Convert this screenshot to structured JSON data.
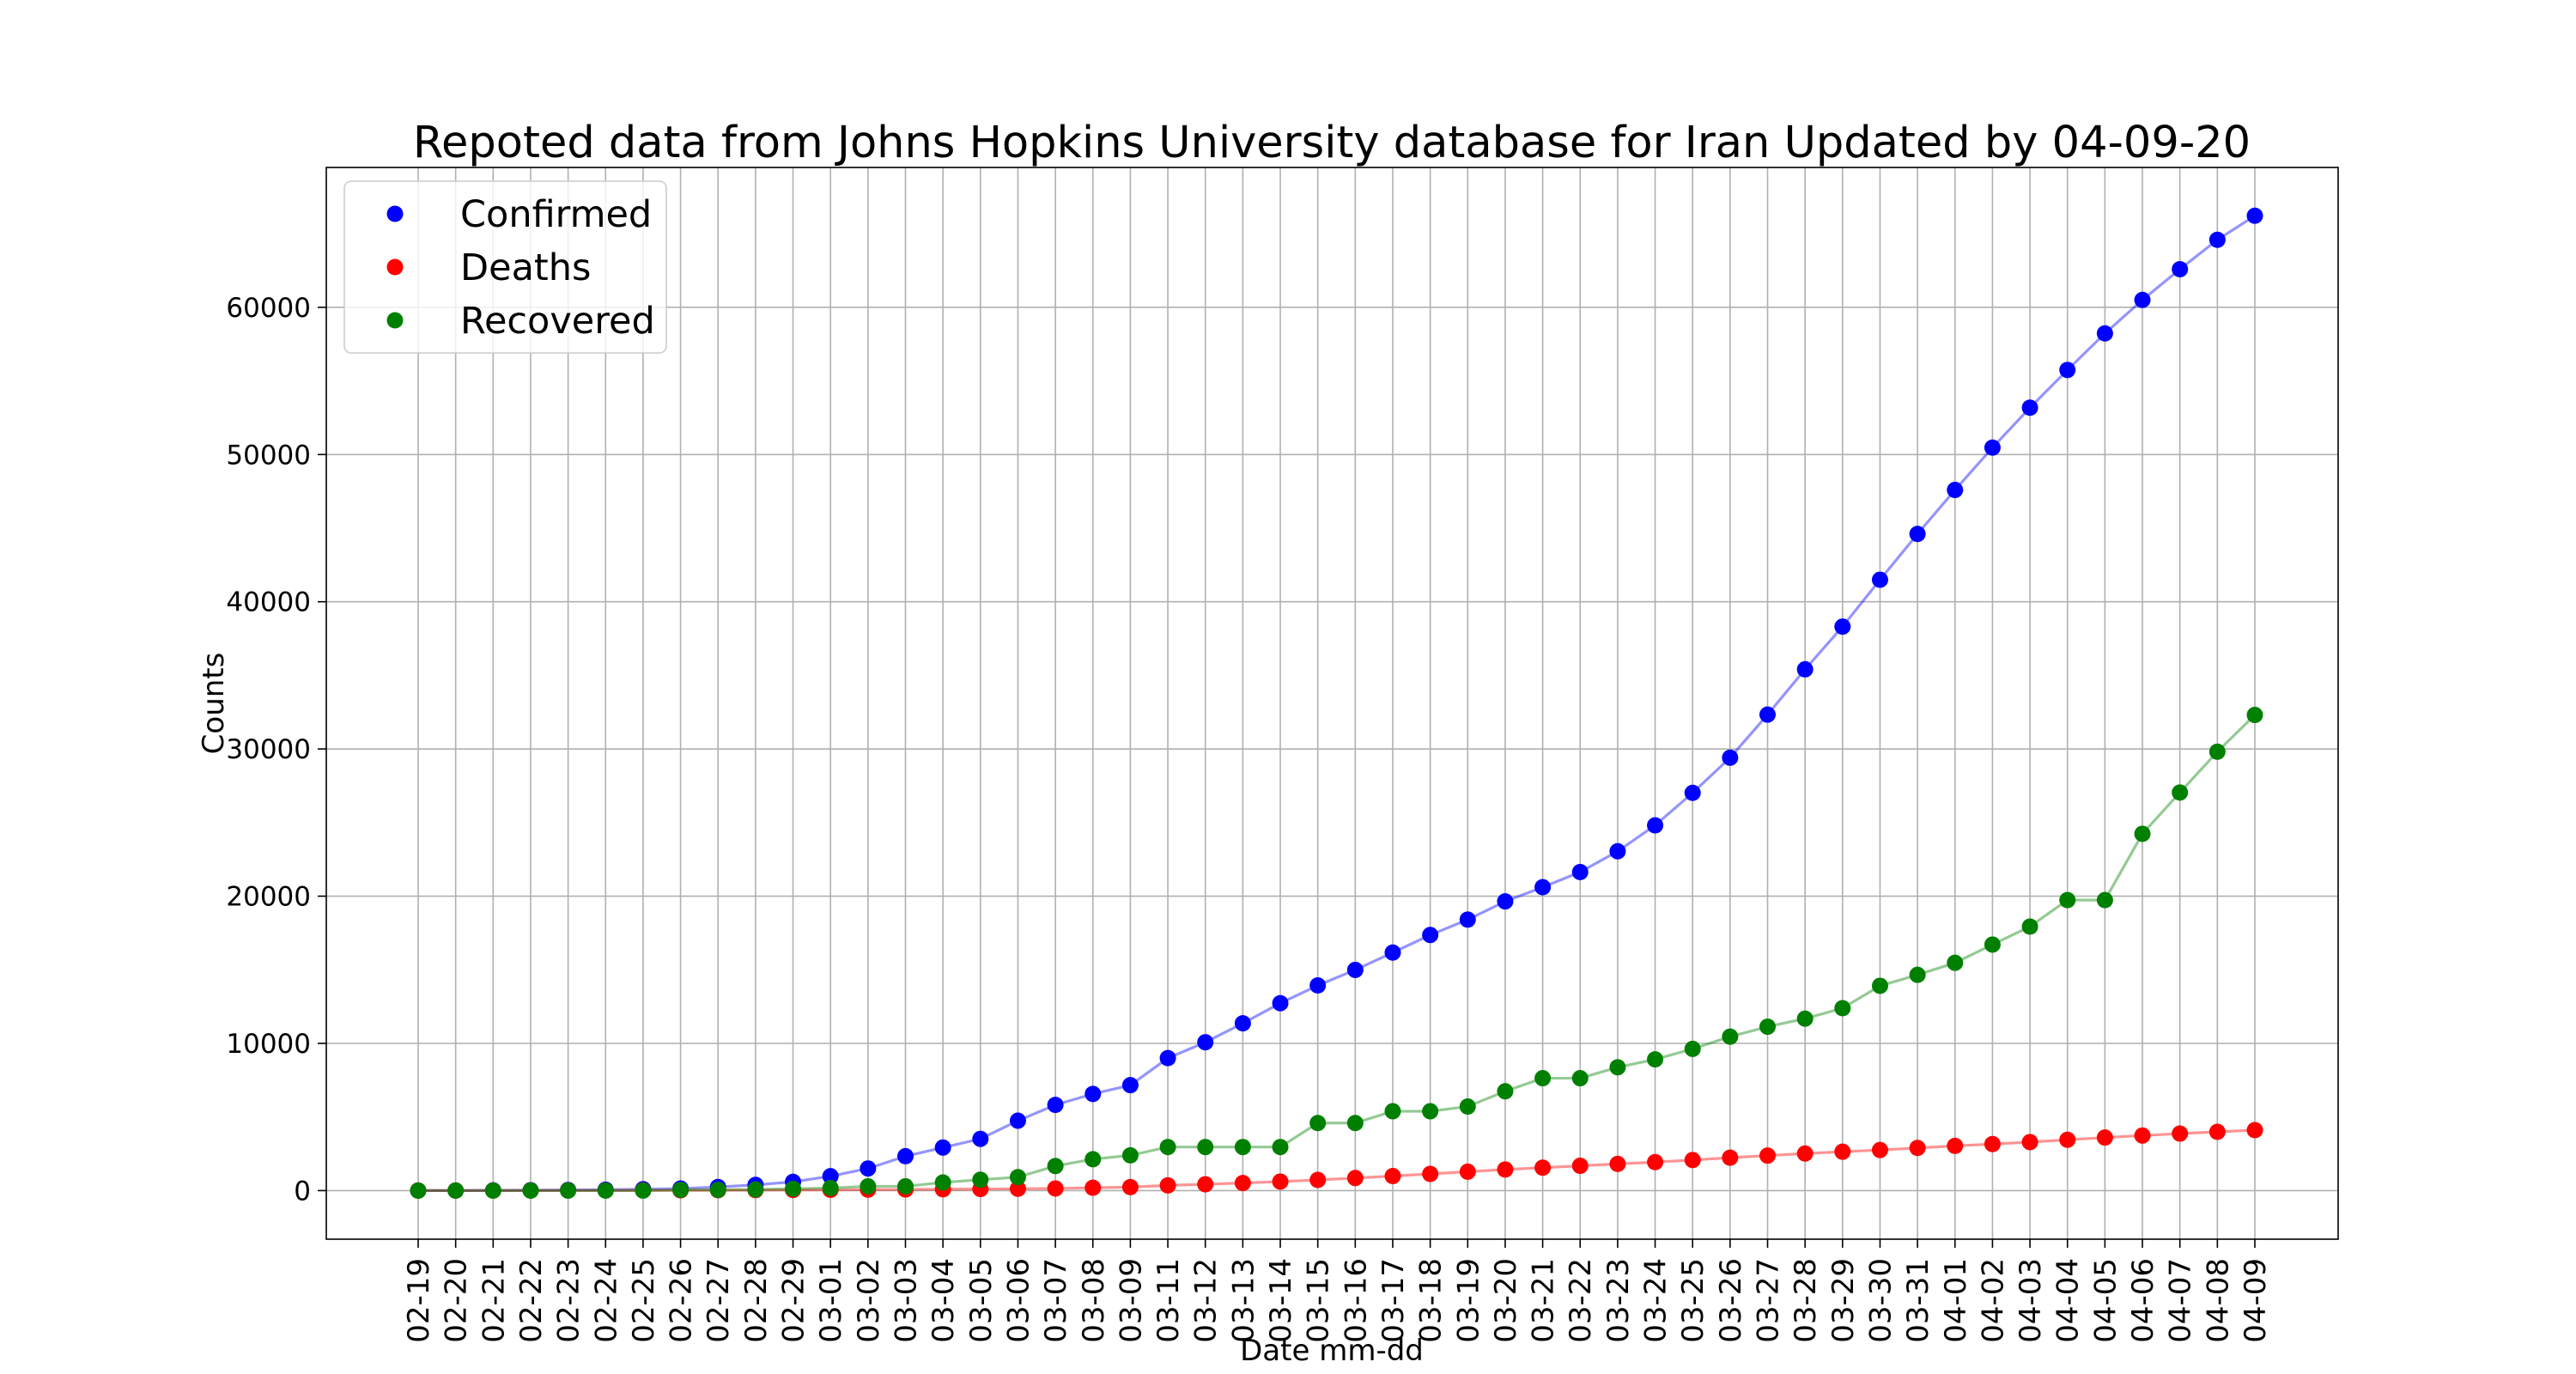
{
  "chart_data": {
    "type": "line",
    "title": "Repoted data from Johns Hopkins University database for Iran Updated by 04-09-20",
    "xlabel": "Date mm-dd",
    "ylabel": "Counts",
    "ylim": [
      -3300,
      69500
    ],
    "yticks": [
      0,
      10000,
      20000,
      30000,
      40000,
      50000,
      60000
    ],
    "grid": true,
    "legend_position": "top-left",
    "categories": [
      "02-19",
      "02-20",
      "02-21",
      "02-22",
      "02-23",
      "02-24",
      "02-25",
      "02-26",
      "02-27",
      "02-28",
      "02-29",
      "03-01",
      "03-02",
      "03-03",
      "03-04",
      "03-05",
      "03-06",
      "03-07",
      "03-08",
      "03-09",
      "03-11",
      "03-12",
      "03-13",
      "03-14",
      "03-15",
      "03-16",
      "03-17",
      "03-18",
      "03-19",
      "03-20",
      "03-21",
      "03-22",
      "03-23",
      "03-24",
      "03-25",
      "03-26",
      "03-27",
      "03-28",
      "03-29",
      "03-30",
      "03-31",
      "04-01",
      "04-02",
      "04-03",
      "04-04",
      "04-05",
      "04-06",
      "04-07",
      "04-08",
      "04-09"
    ],
    "series": [
      {
        "name": "Confirmed",
        "color": "#0000ff",
        "values": [
          2,
          5,
          18,
          28,
          43,
          61,
          95,
          139,
          245,
          388,
          593,
          978,
          1501,
          2336,
          2922,
          3513,
          4747,
          5823,
          6566,
          7161,
          9000,
          10075,
          11364,
          12729,
          13938,
          14991,
          16169,
          17361,
          18407,
          19644,
          20610,
          21638,
          23049,
          24811,
          27017,
          29406,
          32332,
          35408,
          38309,
          41495,
          44605,
          47593,
          50468,
          53183,
          55743,
          58226,
          60500,
          62589,
          64586,
          66220
        ]
      },
      {
        "name": "Deaths",
        "color": "#ff0000",
        "values": [
          2,
          2,
          4,
          5,
          8,
          12,
          16,
          19,
          26,
          34,
          43,
          54,
          66,
          77,
          92,
          107,
          124,
          145,
          194,
          237,
          354,
          429,
          514,
          611,
          724,
          853,
          988,
          1135,
          1284,
          1433,
          1556,
          1685,
          1812,
          1934,
          2077,
          2234,
          2378,
          2517,
          2640,
          2757,
          2898,
          3036,
          3160,
          3294,
          3452,
          3603,
          3739,
          3872,
          3993,
          4110
        ]
      },
      {
        "name": "Recovered",
        "color": "#008000",
        "values": [
          0,
          0,
          0,
          0,
          0,
          0,
          0,
          49,
          49,
          73,
          123,
          175,
          291,
          291,
          552,
          739,
          913,
          1669,
          2134,
          2394,
          2959,
          2959,
          2959,
          2959,
          4590,
          4590,
          5389,
          5389,
          5710,
          6745,
          7635,
          7635,
          8376,
          8913,
          9625,
          10457,
          11133,
          11679,
          12391,
          13911,
          14656,
          15473,
          16711,
          17935,
          19736,
          19736,
          24236,
          27039,
          29812,
          32309
        ]
      }
    ]
  }
}
